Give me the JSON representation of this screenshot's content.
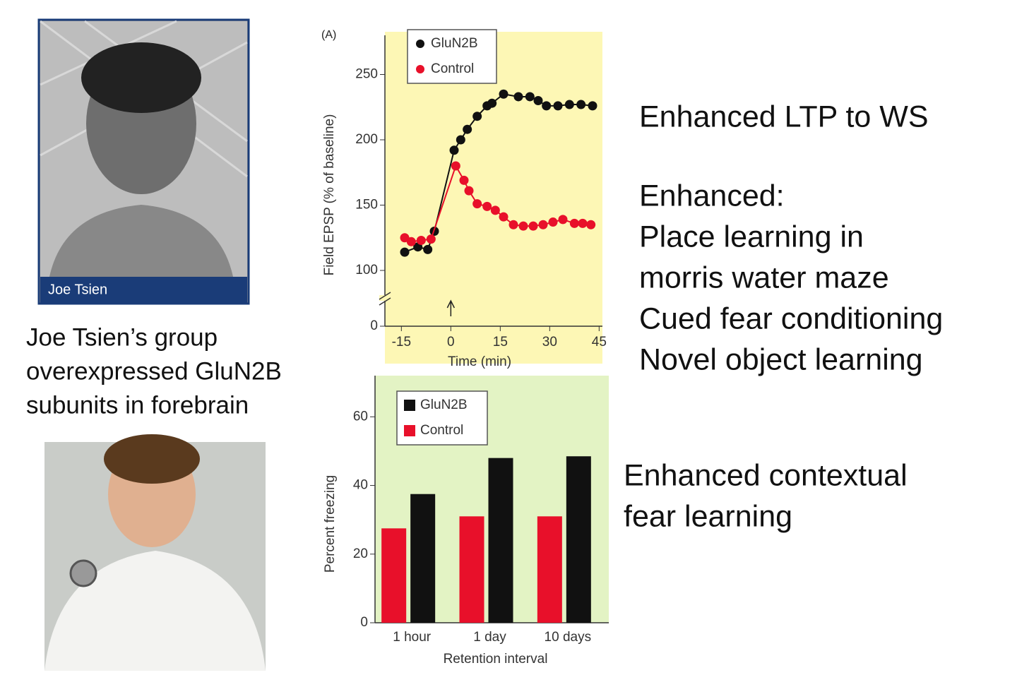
{
  "photo_caption": "Joe Tsien",
  "left_text": [
    "Joe Tsien’s group",
    "overexpressed GluN2B",
    "subunits in forebrain"
  ],
  "right_text": [
    "Enhanced LTP to WS"
  ],
  "enhanced_list": [
    "Enhanced:",
    "Place learning in",
    "morris water maze",
    "Cued fear conditioning",
    "Novel object learning"
  ],
  "contextual_text": [
    "Enhanced contextual",
    "fear learning"
  ],
  "chart_data": [
    {
      "type": "line",
      "panel_label": "(A)",
      "x_label": "Time (min)",
      "y_label": "Field EPSP (% of baseline)",
      "xlim": [
        -20,
        46
      ],
      "xticks": [
        -15,
        0,
        15,
        30,
        45
      ],
      "ylim": [
        0,
        280
      ],
      "yticks": [
        0,
        100,
        150,
        200,
        250
      ],
      "axis_break": true,
      "background": "#fdf7b5",
      "series": [
        {
          "name": "GluN2B",
          "color": "#111111",
          "x": [
            -14,
            -10,
            -7,
            -5,
            1,
            3,
            5,
            8,
            11,
            12.5,
            16,
            20.5,
            24,
            26.5,
            29,
            32.5,
            36,
            39.5,
            43
          ],
          "values": [
            114,
            118,
            116,
            130,
            192,
            200,
            208,
            218,
            226,
            228,
            235,
            233,
            233,
            230,
            226,
            226,
            227,
            227,
            226
          ]
        },
        {
          "name": "Control",
          "color": "#e8102a",
          "x": [
            -14,
            -12,
            -9,
            -6,
            1.5,
            4,
            5.5,
            8,
            11,
            13.5,
            16,
            19,
            22,
            25,
            28,
            31,
            34,
            37.5,
            40,
            42.5
          ],
          "values": [
            125,
            122,
            123,
            124,
            180,
            169,
            161,
            151,
            149,
            146,
            141,
            135,
            134,
            134,
            135,
            137,
            139,
            136,
            136,
            135
          ]
        }
      ]
    },
    {
      "type": "bar",
      "x_label": "Retention interval",
      "y_label": "Percent freezing",
      "categories": [
        "1 hour",
        "1 day",
        "10 days"
      ],
      "ylim": [
        0,
        72
      ],
      "yticks": [
        0,
        20,
        40,
        60
      ],
      "background": "#e3f3c4",
      "series": [
        {
          "name": "GluN2B",
          "color": "#111111",
          "values": [
            37.5,
            48,
            48.5
          ]
        },
        {
          "name": "Control",
          "color": "#e8102a",
          "values": [
            27.5,
            31,
            31
          ]
        }
      ]
    }
  ]
}
